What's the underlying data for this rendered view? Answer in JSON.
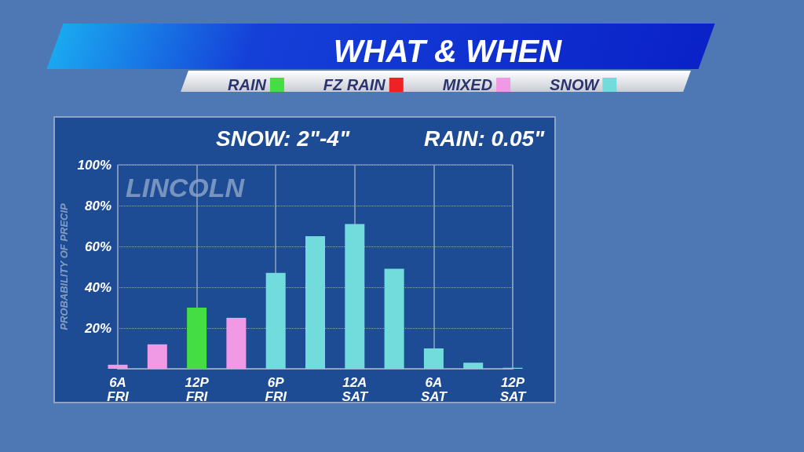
{
  "chart_data": {
    "type": "bar",
    "title": "WHAT & WHEN",
    "ylabel": "PROBABILITY OF PRECIP",
    "annotations": [
      "SNOW: 2\"-4\"",
      "RAIN: 0.05\"",
      "LINCOLN"
    ],
    "categories": [
      "6A\nFRI",
      null,
      "12P\nFRI",
      null,
      "6P\nFRI",
      null,
      "12A\nSAT",
      null,
      "6A\nSAT",
      null,
      "12P\nSAT"
    ],
    "series": [
      {
        "name": "RAIN",
        "color": "#44dd44",
        "values": [
          null,
          null,
          30,
          null,
          null,
          null,
          null,
          null,
          null,
          null,
          null
        ]
      },
      {
        "name": "FZ RAIN",
        "color": "#ee2222",
        "values": [
          null,
          null,
          null,
          null,
          null,
          null,
          null,
          null,
          null,
          null,
          null
        ]
      },
      {
        "name": "MIXED",
        "color": "#f09ae6",
        "values": [
          2,
          12,
          null,
          25,
          null,
          null,
          null,
          null,
          null,
          null,
          null
        ]
      },
      {
        "name": "SNOW",
        "color": "#72dcdc",
        "values": [
          null,
          null,
          null,
          null,
          47,
          65,
          71,
          49,
          10,
          3,
          0.5
        ]
      }
    ],
    "stacked": true,
    "ylim": [
      0,
      100
    ],
    "yticks": [
      {
        "value": 0,
        "label": null
      },
      {
        "value": 20,
        "label": "20%"
      },
      {
        "value": 40,
        "label": "40%"
      },
      {
        "value": 60,
        "label": "60%"
      },
      {
        "value": 80,
        "label": "80%"
      },
      {
        "value": 100,
        "label": "100%"
      }
    ],
    "grid": true,
    "legend": "top"
  }
}
